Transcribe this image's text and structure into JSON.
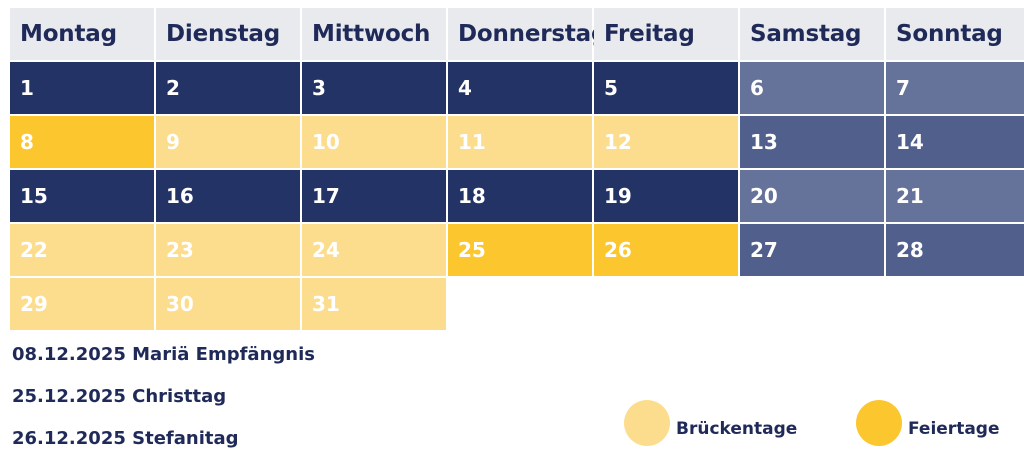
{
  "calendar": {
    "weekdays": [
      "Montag",
      "Dienstag",
      "Mittwoch",
      "Donnerstag",
      "Freitag",
      "Samstag",
      "Sonntag"
    ],
    "weeks": [
      [
        {
          "day": "1",
          "type": "work"
        },
        {
          "day": "2",
          "type": "work"
        },
        {
          "day": "3",
          "type": "work"
        },
        {
          "day": "4",
          "type": "work"
        },
        {
          "day": "5",
          "type": "work"
        },
        {
          "day": "6",
          "type": "wkd1"
        },
        {
          "day": "7",
          "type": "wkd1"
        }
      ],
      [
        {
          "day": "8",
          "type": "hol"
        },
        {
          "day": "9",
          "type": "bridge"
        },
        {
          "day": "10",
          "type": "bridge"
        },
        {
          "day": "11",
          "type": "bridge"
        },
        {
          "day": "12",
          "type": "bridge"
        },
        {
          "day": "13",
          "type": "wkd2"
        },
        {
          "day": "14",
          "type": "wkd2"
        }
      ],
      [
        {
          "day": "15",
          "type": "work"
        },
        {
          "day": "16",
          "type": "work"
        },
        {
          "day": "17",
          "type": "work"
        },
        {
          "day": "18",
          "type": "work"
        },
        {
          "day": "19",
          "type": "work"
        },
        {
          "day": "20",
          "type": "wkd1"
        },
        {
          "day": "21",
          "type": "wkd1"
        }
      ],
      [
        {
          "day": "22",
          "type": "bridge"
        },
        {
          "day": "23",
          "type": "bridge"
        },
        {
          "day": "24",
          "type": "bridge"
        },
        {
          "day": "25",
          "type": "hol"
        },
        {
          "day": "26",
          "type": "hol"
        },
        {
          "day": "27",
          "type": "wkd2"
        },
        {
          "day": "28",
          "type": "wkd2"
        }
      ],
      [
        {
          "day": "29",
          "type": "bridge"
        },
        {
          "day": "30",
          "type": "bridge"
        },
        {
          "day": "31",
          "type": "bridge"
        },
        {
          "day": "",
          "type": "empty"
        },
        {
          "day": "",
          "type": "empty"
        },
        {
          "day": "",
          "type": "empty"
        },
        {
          "day": "",
          "type": "empty"
        }
      ]
    ]
  },
  "holidays": [
    "08.12.2025 Mariä Empfängnis",
    "25.12.2025 Christtag",
    "26.12.2025 Stefanitag"
  ],
  "legend": {
    "bridge_label": "Brückentage",
    "holiday_label": "Feiertage",
    "bridge_color": "#fcdd8d",
    "holiday_color": "#fbc62e"
  },
  "colors": {
    "workday": "#243366",
    "weekend_light": "#65729a",
    "weekend_dark": "#515f8c",
    "header_bg": "#e8eaee",
    "text_dark": "#1f2a59"
  }
}
